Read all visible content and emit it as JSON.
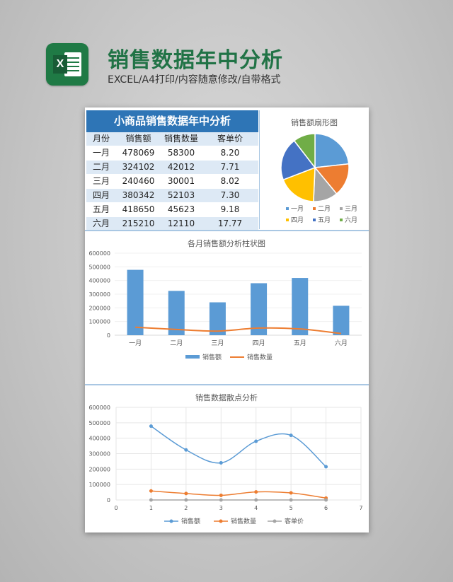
{
  "header": {
    "title": "销售数据年中分析",
    "subtitle": "EXCEL/A4打印/内容随意修改/自带格式",
    "logo_letter": "X"
  },
  "table": {
    "title": "小商品销售数据年中分析",
    "columns": [
      "月份",
      "销售额",
      "销售数量",
      "客单价"
    ],
    "rows": [
      [
        "一月",
        "478069",
        "58300",
        "8.20"
      ],
      [
        "二月",
        "324102",
        "42012",
        "7.71"
      ],
      [
        "三月",
        "240460",
        "30001",
        "8.02"
      ],
      [
        "四月",
        "380342",
        "52103",
        "7.30"
      ],
      [
        "五月",
        "418650",
        "45623",
        "9.18"
      ],
      [
        "六月",
        "215210",
        "12110",
        "17.77"
      ]
    ]
  },
  "colors": {
    "blue": "#5b9bd5",
    "orange": "#ed7d31",
    "gray": "#a5a5a5",
    "yellow": "#ffc000",
    "darkblue": "#4472c4",
    "green": "#70ad47",
    "header_blue": "#2e75b6",
    "brand_green": "#217346"
  },
  "chart_data": [
    {
      "type": "pie",
      "title": "销售额扇形图",
      "categories": [
        "一月",
        "二月",
        "三月",
        "四月",
        "五月",
        "六月"
      ],
      "values": [
        478069,
        324102,
        240460,
        380342,
        418650,
        215210
      ],
      "legend": "bottom"
    },
    {
      "type": "bar",
      "title": "各月销售额分析柱状图",
      "categories": [
        "一月",
        "二月",
        "三月",
        "四月",
        "五月",
        "六月"
      ],
      "series": [
        {
          "name": "销售额",
          "type": "bar",
          "values": [
            478069,
            324102,
            240460,
            380342,
            418650,
            215210
          ]
        },
        {
          "name": "销售数量",
          "type": "line",
          "values": [
            58300,
            42012,
            30001,
            52103,
            45623,
            12110
          ]
        }
      ],
      "ylim": [
        0,
        600000
      ],
      "yticks": [
        "0",
        "100000",
        "200000",
        "300000",
        "400000",
        "500000",
        "600000"
      ],
      "legend": "bottom"
    },
    {
      "type": "scatter",
      "title": "销售数据散点分析",
      "x": [
        1,
        2,
        3,
        4,
        5,
        6
      ],
      "series": [
        {
          "name": "销售额",
          "values": [
            478069,
            324102,
            240460,
            380342,
            418650,
            215210
          ]
        },
        {
          "name": "销售数量",
          "values": [
            58300,
            42012,
            30001,
            52103,
            45623,
            12110
          ]
        },
        {
          "name": "客单价",
          "values": [
            8.2,
            7.71,
            8.02,
            7.3,
            9.18,
            17.77
          ]
        }
      ],
      "xlim": [
        0,
        7
      ],
      "ylim": [
        0,
        600000
      ],
      "xticks": [
        "0",
        "1",
        "2",
        "3",
        "4",
        "5",
        "6",
        "7"
      ],
      "yticks": [
        "0",
        "100000",
        "200000",
        "300000",
        "400000",
        "500000",
        "600000"
      ],
      "grid": true,
      "legend": "bottom"
    }
  ]
}
